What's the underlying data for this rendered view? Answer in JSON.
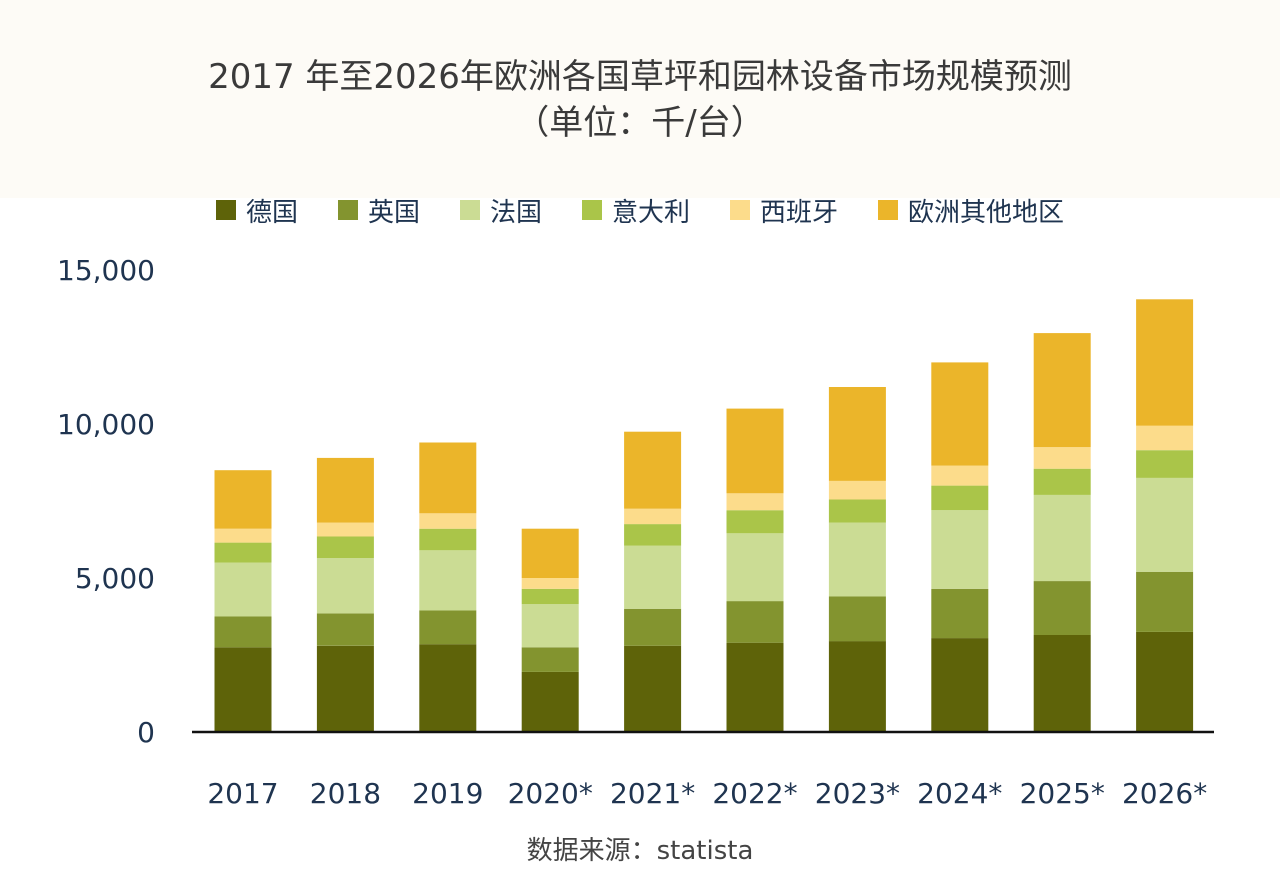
{
  "header": {
    "title_line1": "2017 年至2026年欧洲各国草坪和园林设备市场规模预测",
    "title_line2": "（单位：千/台）"
  },
  "source": "数据来源：statista",
  "chart_data": {
    "type": "bar",
    "stacked": true,
    "title": "2017 年至2026年欧洲各国草坪和园林设备市场规模预测（单位：千/台）",
    "xlabel": "",
    "ylabel": "",
    "ylim": [
      0,
      15000
    ],
    "yticks": [
      0,
      5000,
      10000,
      15000
    ],
    "ytick_labels": [
      "0",
      "5,000",
      "10,000",
      "15,000"
    ],
    "legend_position": "top",
    "categories": [
      "2017",
      "2018",
      "2019",
      "2020*",
      "2021*",
      "2022*",
      "2023*",
      "2024*",
      "2025*",
      "2026*"
    ],
    "series": [
      {
        "name": "德国",
        "color": "#5e6309",
        "values": [
          2750,
          2800,
          2850,
          1950,
          2800,
          2900,
          2950,
          3050,
          3150,
          3250
        ]
      },
      {
        "name": "英国",
        "color": "#83942f",
        "values": [
          1000,
          1050,
          1100,
          800,
          1200,
          1350,
          1450,
          1600,
          1750,
          1950
        ]
      },
      {
        "name": "法国",
        "color": "#cbdc94",
        "values": [
          1750,
          1800,
          1950,
          1400,
          2050,
          2200,
          2400,
          2550,
          2800,
          3050
        ]
      },
      {
        "name": "意大利",
        "color": "#aac549",
        "values": [
          650,
          700,
          700,
          500,
          700,
          750,
          750,
          800,
          850,
          900
        ]
      },
      {
        "name": "西班牙",
        "color": "#fcdc8b",
        "values": [
          450,
          450,
          500,
          350,
          500,
          550,
          600,
          650,
          700,
          800
        ]
      },
      {
        "name": "欧洲其他地区",
        "color": "#ebb52a",
        "values": [
          1900,
          2100,
          2300,
          1600,
          2500,
          2750,
          3050,
          3350,
          3700,
          4100
        ]
      }
    ]
  }
}
